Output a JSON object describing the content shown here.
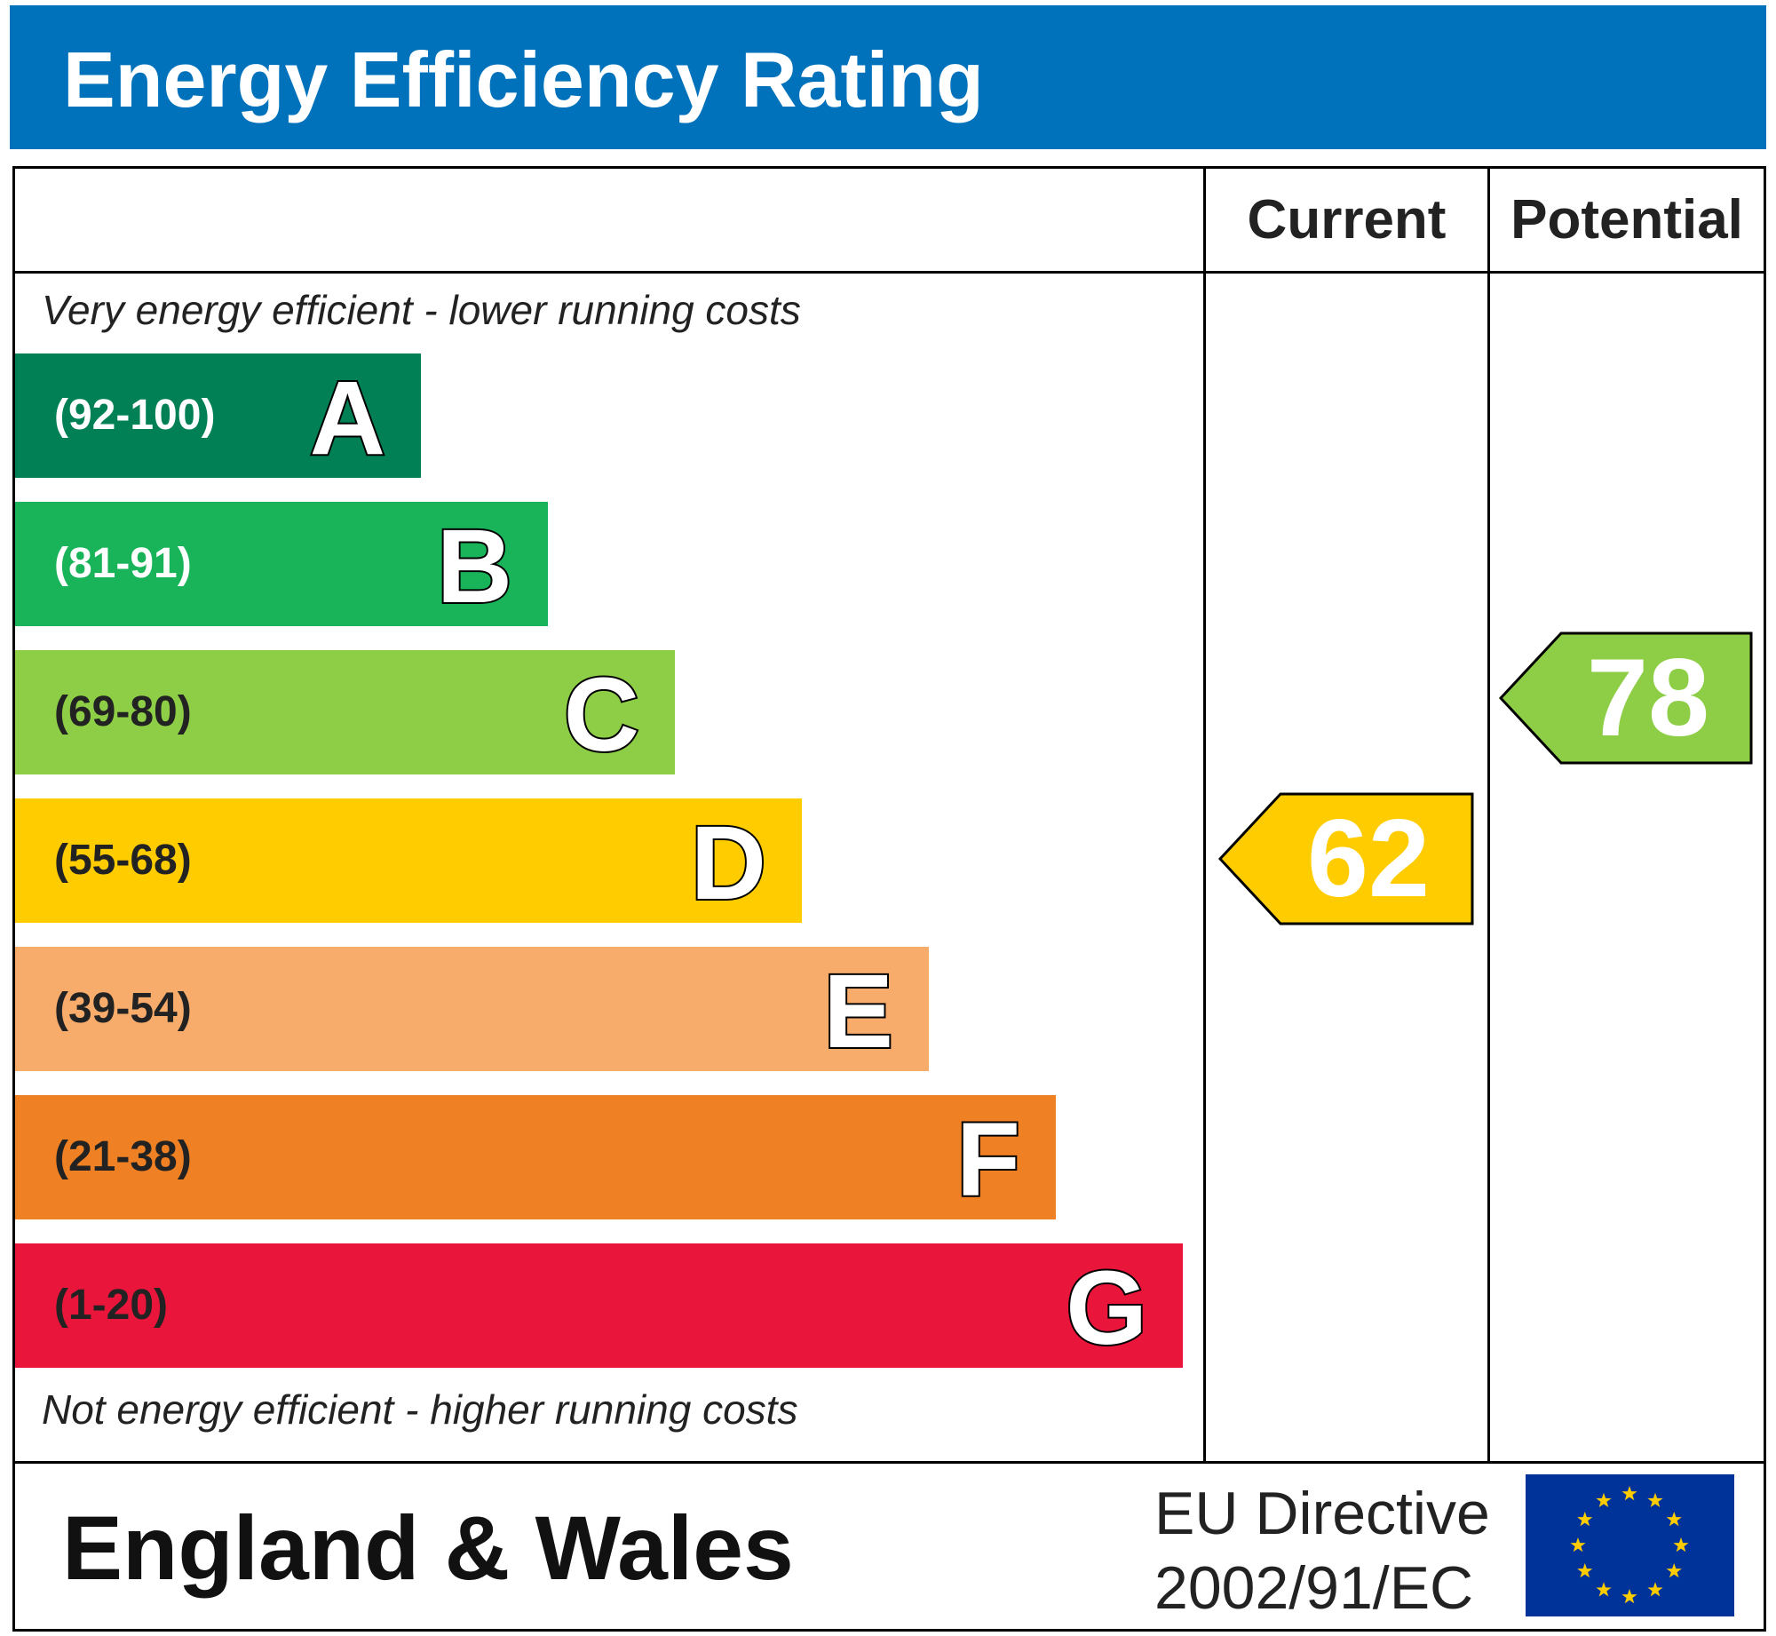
{
  "title": "Energy Efficiency Rating",
  "columns": {
    "current": "Current",
    "potential": "Potential"
  },
  "notes": {
    "top": "Very energy efficient - lower running costs",
    "bottom": "Not energy efficient - higher running costs"
  },
  "chart_data": {
    "type": "bar",
    "categories": [
      "A",
      "B",
      "C",
      "D",
      "E",
      "F",
      "G"
    ],
    "bands": [
      {
        "letter": "A",
        "range": "(92-100)",
        "min": 92,
        "max": 100,
        "color": "#008054",
        "range_color": "#ffffff"
      },
      {
        "letter": "B",
        "range": "(81-91)",
        "min": 81,
        "max": 91,
        "color": "#19b459",
        "range_color": "#ffffff"
      },
      {
        "letter": "C",
        "range": "(69-80)",
        "min": 69,
        "max": 80,
        "color": "#8dce46",
        "range_color": "#222222"
      },
      {
        "letter": "D",
        "range": "(55-68)",
        "min": 55,
        "max": 68,
        "color": "#ffcc00",
        "range_color": "#222222"
      },
      {
        "letter": "E",
        "range": "(39-54)",
        "min": 39,
        "max": 54,
        "color": "#f7ac6b",
        "range_color": "#222222"
      },
      {
        "letter": "F",
        "range": "(21-38)",
        "min": 21,
        "max": 38,
        "color": "#ef8023",
        "range_color": "#222222"
      },
      {
        "letter": "G",
        "range": "(1-20)",
        "min": 1,
        "max": 20,
        "color": "#e9153b",
        "range_color": "#222222"
      }
    ],
    "current": {
      "value": 62,
      "label": "62",
      "band": "D",
      "color": "#ffcc00"
    },
    "potential": {
      "value": 78,
      "label": "78",
      "band": "C",
      "color": "#8dce46"
    }
  },
  "footer": {
    "region": "England & Wales",
    "directive_line1": "EU Directive",
    "directive_line2": "2002/91/EC",
    "flag_colors": {
      "background": "#003399",
      "stars": "#ffcc00"
    },
    "flag_icon": "eu-flag-icon"
  }
}
